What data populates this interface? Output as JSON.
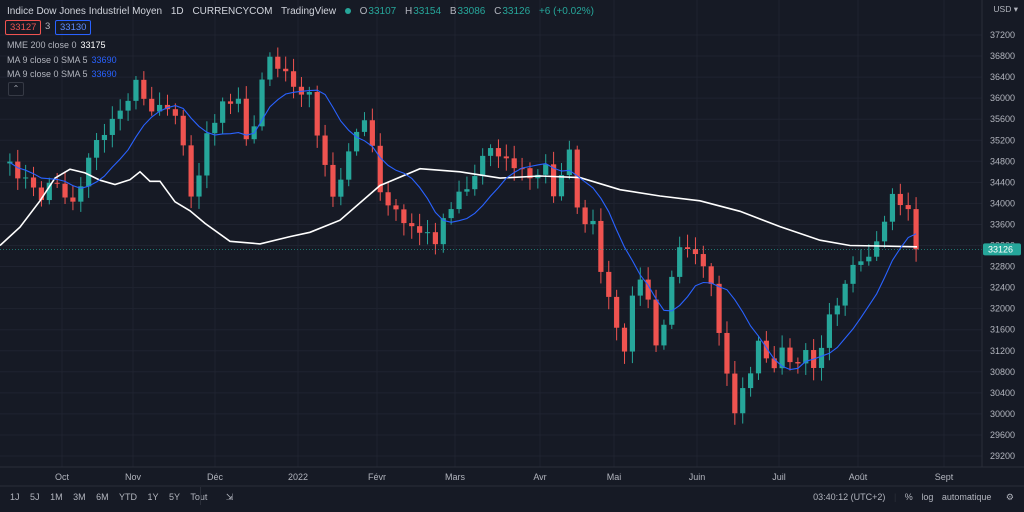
{
  "header": {
    "symbol": "Indice Dow Jones Industriel Moyen",
    "interval": "1D",
    "exchange": "CURRENCYCOM",
    "source": "TradingView",
    "ohlc": {
      "o_label": "O",
      "o": "33107",
      "h_label": "H",
      "h": "33154",
      "b_label": "B",
      "b": "33086",
      "c_label": "C",
      "c": "33126",
      "change": "+6 (+0.02%)"
    },
    "sell_price": "33127",
    "spread": "3",
    "buy_price": "33130"
  },
  "indicators": [
    {
      "label": "MME 200 close 0",
      "value": "33175"
    },
    {
      "label": "MA 9 close 0 SMA 5",
      "value": "33690"
    },
    {
      "label": "MA 9 close 0 SMA 5",
      "value": "33690"
    }
  ],
  "currency": "USD",
  "price_axis": {
    "ticks": [
      "37200",
      "36800",
      "36400",
      "36000",
      "35600",
      "35200",
      "34800",
      "34400",
      "34000",
      "33600",
      "33200",
      "32800",
      "32400",
      "32000",
      "31600",
      "31200",
      "30800",
      "30400",
      "30000",
      "29600",
      "29200"
    ],
    "last_price": "33126"
  },
  "time_axis": [
    "Oct",
    "Nov",
    "Déc",
    "2022",
    "Févr",
    "Mars",
    "Avr",
    "Mai",
    "Juin",
    "Juil",
    "Août",
    "Sept"
  ],
  "bottom_bar": {
    "ranges": [
      "1J",
      "5J",
      "1M",
      "3M",
      "6M",
      "YTD",
      "1Y",
      "5Y",
      "Tout"
    ],
    "clock": "03:40:12 (UTC+2)",
    "percent": "%",
    "log": "log",
    "auto": "automatique"
  },
  "colors": {
    "up": "#26a69a",
    "down": "#ef5350",
    "ema": "#ffffff",
    "sma": "#2962ff",
    "background": "#161a25"
  },
  "chart_data": {
    "type": "candlestick",
    "title": "Indice Dow Jones Industriel Moyen",
    "ylim": [
      29200,
      37200
    ],
    "x_labels": [
      "Oct",
      "Nov",
      "Déc",
      "2022",
      "Févr",
      "Mars",
      "Avr",
      "Mai",
      "Juin",
      "Juil",
      "Août",
      "Sept"
    ],
    "close_path": [
      [
        1,
        34700
      ],
      [
        3,
        34500
      ],
      [
        5,
        34100
      ],
      [
        7,
        34400
      ],
      [
        9,
        34000
      ],
      [
        11,
        34800
      ],
      [
        13,
        35400
      ],
      [
        15,
        35800
      ],
      [
        17,
        36200
      ],
      [
        19,
        35800
      ],
      [
        21,
        35900
      ],
      [
        22,
        35600
      ],
      [
        23,
        35000
      ],
      [
        24,
        34200
      ],
      [
        25,
        34500
      ],
      [
        26,
        35400
      ],
      [
        28,
        35800
      ],
      [
        30,
        36000
      ],
      [
        31,
        35200
      ],
      [
        32,
        35600
      ],
      [
        33,
        36300
      ],
      [
        34,
        36700
      ],
      [
        35,
        36600
      ],
      [
        37,
        36300
      ],
      [
        39,
        36000
      ],
      [
        40,
        35300
      ],
      [
        41,
        34700
      ],
      [
        42,
        34100
      ],
      [
        43,
        34600
      ],
      [
        45,
        35300
      ],
      [
        46,
        35600
      ],
      [
        47,
        35000
      ],
      [
        48,
        34300
      ],
      [
        50,
        33800
      ],
      [
        52,
        33500
      ],
      [
        53,
        33400
      ],
      [
        54,
        33600
      ],
      [
        55,
        33200
      ],
      [
        56,
        33700
      ],
      [
        58,
        34100
      ],
      [
        60,
        34600
      ],
      [
        62,
        35100
      ],
      [
        63,
        34800
      ],
      [
        65,
        34800
      ],
      [
        67,
        34500
      ],
      [
        69,
        34600
      ],
      [
        70,
        34200
      ],
      [
        71,
        34600
      ],
      [
        72,
        35000
      ],
      [
        73,
        34000
      ],
      [
        74,
        33500
      ],
      [
        75,
        33600
      ],
      [
        76,
        32800
      ],
      [
        77,
        32200
      ],
      [
        78,
        31700
      ],
      [
        79,
        31200
      ],
      [
        80,
        32100
      ],
      [
        81,
        32600
      ],
      [
        82,
        32200
      ],
      [
        83,
        31300
      ],
      [
        84,
        31800
      ],
      [
        85,
        32500
      ],
      [
        86,
        33100
      ],
      [
        87,
        33200
      ],
      [
        88,
        33000
      ],
      [
        89,
        32900
      ],
      [
        90,
        32500
      ],
      [
        91,
        31400
      ],
      [
        92,
        30800
      ],
      [
        93,
        30000
      ],
      [
        94,
        30500
      ],
      [
        95,
        30900
      ],
      [
        96,
        31300
      ],
      [
        97,
        31000
      ],
      [
        98,
        30900
      ],
      [
        99,
        31200
      ],
      [
        101,
        31000
      ],
      [
        102,
        31100
      ],
      [
        103,
        30900
      ],
      [
        104,
        31200
      ],
      [
        105,
        31900
      ],
      [
        106,
        32200
      ],
      [
        107,
        32400
      ],
      [
        108,
        32800
      ],
      [
        109,
        32900
      ],
      [
        110,
        32900
      ],
      [
        111,
        33400
      ],
      [
        112,
        33700
      ],
      [
        113,
        34100
      ],
      [
        114,
        34000
      ],
      [
        115,
        33800
      ],
      [
        116,
        33126
      ]
    ],
    "series": [
      {
        "name": "MME 200 close 0",
        "last": 33175
      },
      {
        "name": "MA 9 close 0 SMA 5",
        "last": 33690
      }
    ]
  }
}
